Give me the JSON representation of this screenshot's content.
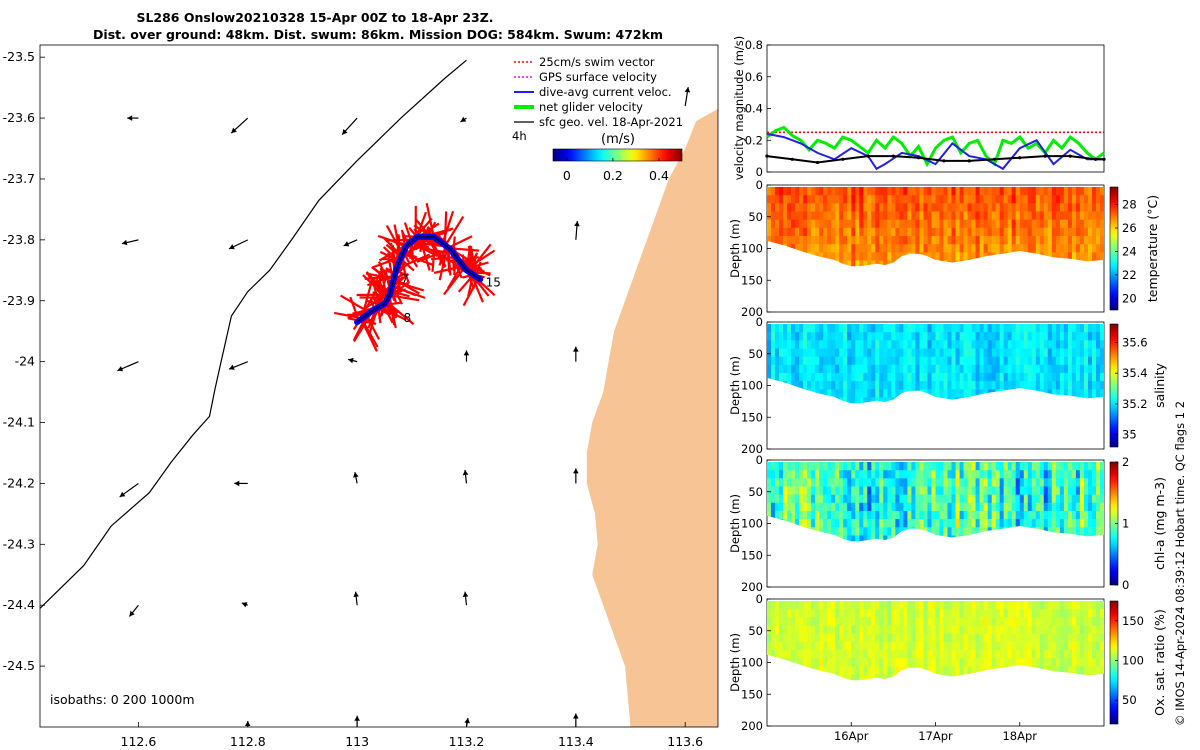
{
  "header": {
    "title_line1": "SL286 Onslow20210328 15-Apr 00Z to 18-Apr 23Z.",
    "title_line2": "Dist. over ground: 48km. Dist. swum: 86km. Mission DOG: 584km. Swum: 472km"
  },
  "map": {
    "xlim": [
      112.42,
      113.66
    ],
    "ylim": [
      -24.6,
      -23.48
    ],
    "xticks": [
      "112.6",
      "112.8",
      "113",
      "113.2",
      "113.4",
      "113.6"
    ],
    "xtick_values": [
      112.6,
      112.8,
      113.0,
      113.2,
      113.4,
      113.6
    ],
    "yticks": [
      "-23.5",
      "-23.6",
      "-23.7",
      "-23.8",
      "-23.9",
      "-24",
      "-24.1",
      "-24.2",
      "-24.3",
      "-24.4",
      "-24.5"
    ],
    "ytick_values": [
      -23.5,
      -23.6,
      -23.7,
      -23.8,
      -23.9,
      -24.0,
      -24.1,
      -24.2,
      -24.3,
      -24.4,
      -24.5
    ],
    "legend": [
      {
        "label": "25cm/s swim vector",
        "color": "#ff0000"
      },
      {
        "label": "GPS surface velocity",
        "color": "#ff00ff"
      },
      {
        "label": "dive-avg current veloc.",
        "color": "#0000ff"
      },
      {
        "label": "net glider velocity",
        "color": "#00ee00"
      },
      {
        "label": "sfc geo. vel. 18-Apr-2021",
        "color": "#000000"
      }
    ],
    "legend_extra": "4h",
    "colorbar_title": "(m/s)",
    "colorbar_ticks": [
      "0",
      "0.2",
      "0.4"
    ],
    "colorbar_tick_values": [
      0,
      0.2,
      0.4
    ],
    "colorbar_range": [
      -0.06,
      0.5
    ],
    "track_labels": [
      {
        "text": "7",
        "lon": 113.08,
        "lat": -23.865
      },
      {
        "text": "8",
        "lon": 113.085,
        "lat": -23.928
      },
      {
        "text": "15",
        "lon": 113.235,
        "lat": -23.87
      }
    ],
    "isobaths_label": "isobaths: 0   200  1000m",
    "land_color": "#f7c595",
    "track_color": "#0000ee",
    "swim_color": "#ff0000",
    "glider_track": [
      [
        113.0,
        -23.935
      ],
      [
        113.03,
        -23.915
      ],
      [
        113.05,
        -23.905
      ],
      [
        113.06,
        -23.89
      ],
      [
        113.065,
        -23.87
      ],
      [
        113.075,
        -23.84
      ],
      [
        113.09,
        -23.81
      ],
      [
        113.11,
        -23.795
      ],
      [
        113.14,
        -23.795
      ],
      [
        113.17,
        -23.815
      ],
      [
        113.2,
        -23.85
      ],
      [
        113.225,
        -23.865
      ]
    ],
    "isobath_1000m": [
      [
        112.42,
        -24.405
      ],
      [
        112.5,
        -24.335
      ],
      [
        112.55,
        -24.27
      ],
      [
        112.62,
        -24.215
      ],
      [
        112.66,
        -24.165
      ],
      [
        112.7,
        -24.12
      ],
      [
        112.73,
        -24.09
      ],
      [
        112.74,
        -24.045
      ],
      [
        112.75,
        -24.005
      ],
      [
        112.77,
        -23.925
      ],
      [
        112.8,
        -23.885
      ],
      [
        112.84,
        -23.85
      ],
      [
        112.88,
        -23.8
      ],
      [
        112.93,
        -23.735
      ],
      [
        113.0,
        -23.67
      ],
      [
        113.08,
        -23.6
      ],
      [
        113.16,
        -23.535
      ],
      [
        113.2,
        -23.505
      ]
    ],
    "coastline": [
      [
        113.66,
        -23.585
      ],
      [
        113.62,
        -23.605
      ],
      [
        113.6,
        -23.65
      ],
      [
        113.57,
        -23.7
      ],
      [
        113.55,
        -23.75
      ],
      [
        113.53,
        -23.8
      ],
      [
        113.51,
        -23.85
      ],
      [
        113.49,
        -23.9
      ],
      [
        113.47,
        -23.95
      ],
      [
        113.46,
        -24.0
      ],
      [
        113.45,
        -24.05
      ],
      [
        113.43,
        -24.1
      ],
      [
        113.42,
        -24.15
      ],
      [
        113.42,
        -24.2
      ],
      [
        113.435,
        -24.25
      ],
      [
        113.44,
        -24.3
      ],
      [
        113.43,
        -24.35
      ],
      [
        113.45,
        -24.4
      ],
      [
        113.47,
        -24.45
      ],
      [
        113.49,
        -24.5
      ],
      [
        113.5,
        -24.6
      ]
    ],
    "geo_vectors": [
      [
        112.6,
        -23.6,
        -0.15,
        0
      ],
      [
        112.8,
        -23.6,
        -0.22,
        -0.2
      ],
      [
        113.0,
        -23.6,
        -0.2,
        -0.22
      ],
      [
        113.2,
        -23.6,
        -0.08,
        -0.05
      ],
      [
        112.6,
        -23.8,
        -0.22,
        -0.05
      ],
      [
        112.8,
        -23.8,
        -0.25,
        -0.12
      ],
      [
        113.0,
        -23.8,
        -0.18,
        -0.08
      ],
      [
        113.4,
        -23.8,
        0.02,
        0.25
      ],
      [
        112.6,
        -24.0,
        -0.28,
        -0.12
      ],
      [
        112.8,
        -24.0,
        -0.25,
        -0.1
      ],
      [
        113.0,
        -24.0,
        -0.12,
        0.03
      ],
      [
        113.2,
        -24.0,
        0.0,
        0.15
      ],
      [
        113.4,
        -24.0,
        0.0,
        0.2
      ],
      [
        112.6,
        -24.2,
        -0.25,
        -0.18
      ],
      [
        112.8,
        -24.2,
        -0.18,
        0
      ],
      [
        113.0,
        -24.2,
        -0.03,
        0.15
      ],
      [
        113.2,
        -24.2,
        -0.02,
        0.18
      ],
      [
        113.4,
        -24.2,
        0.0,
        0.2
      ],
      [
        112.6,
        -24.4,
        -0.12,
        -0.15
      ],
      [
        112.8,
        -24.4,
        -0.08,
        0.03
      ],
      [
        113.0,
        -24.4,
        -0.02,
        0.18
      ],
      [
        113.2,
        -24.4,
        -0.02,
        0.18
      ],
      [
        112.8,
        -24.6,
        0,
        0.08
      ],
      [
        113.0,
        -24.6,
        0,
        0.15
      ],
      [
        113.2,
        -24.6,
        0.02,
        0.12
      ],
      [
        113.4,
        -24.6,
        0,
        0.18
      ],
      [
        113.6,
        -23.58,
        0.04,
        0.25
      ]
    ]
  },
  "chart_data": [
    {
      "type": "line",
      "title": "",
      "ylabel": "velocity magnitude (m/s)",
      "ylim": [
        0,
        0.8
      ],
      "yticks": [
        "0",
        "0.2",
        "0.4",
        "0.6",
        "0.8"
      ],
      "ytick_values": [
        0,
        0.2,
        0.4,
        0.6,
        0.8
      ],
      "xlim": [
        0,
        4
      ],
      "series": [
        {
          "name": "25cm/s swim vector",
          "color": "#ff0000",
          "style": "dotted",
          "x": [
            0,
            4
          ],
          "values": [
            0.25,
            0.25
          ]
        },
        {
          "name": "net glider velocity",
          "color": "#00ee00",
          "x": [
            0,
            0.1,
            0.2,
            0.3,
            0.4,
            0.5,
            0.6,
            0.7,
            0.8,
            0.9,
            1.0,
            1.1,
            1.2,
            1.3,
            1.4,
            1.5,
            1.6,
            1.7,
            1.8,
            1.9,
            2.0,
            2.1,
            2.2,
            2.3,
            2.4,
            2.5,
            2.6,
            2.7,
            2.8,
            2.9,
            3.0,
            3.1,
            3.2,
            3.3,
            3.4,
            3.5,
            3.6,
            3.7,
            3.8,
            3.9,
            4.0
          ],
          "values": [
            0.22,
            0.26,
            0.28,
            0.23,
            0.2,
            0.14,
            0.2,
            0.18,
            0.15,
            0.22,
            0.2,
            0.16,
            0.12,
            0.2,
            0.15,
            0.22,
            0.18,
            0.1,
            0.16,
            0.05,
            0.15,
            0.2,
            0.22,
            0.12,
            0.18,
            0.2,
            0.1,
            0.05,
            0.2,
            0.18,
            0.22,
            0.15,
            0.18,
            0.12,
            0.2,
            0.15,
            0.22,
            0.18,
            0.12,
            0.08,
            0.12
          ]
        },
        {
          "name": "dive-avg current veloc.",
          "color": "#2222dd",
          "x": [
            0,
            0.2,
            0.4,
            0.6,
            0.8,
            1.0,
            1.2,
            1.3,
            1.4,
            1.6,
            1.8,
            2.0,
            2.2,
            2.4,
            2.6,
            2.8,
            3.0,
            3.2,
            3.4,
            3.6,
            3.8,
            4.0
          ],
          "values": [
            0.24,
            0.22,
            0.18,
            0.12,
            0.08,
            0.15,
            0.1,
            0.02,
            0.05,
            0.12,
            0.1,
            0.05,
            0.18,
            0.1,
            0.08,
            0.02,
            0.15,
            0.2,
            0.05,
            0.14,
            0.08,
            0.08
          ]
        },
        {
          "name": "sfc geo. vel.",
          "color": "#000000",
          "x": [
            0,
            0.3,
            0.6,
            0.9,
            1.2,
            1.5,
            1.8,
            2.1,
            2.4,
            2.7,
            3.0,
            3.3,
            3.6,
            3.9,
            4.0
          ],
          "values": [
            0.1,
            0.08,
            0.06,
            0.08,
            0.1,
            0.1,
            0.09,
            0.07,
            0.07,
            0.08,
            0.09,
            0.1,
            0.1,
            0.08,
            0.08
          ]
        }
      ]
    },
    {
      "type": "heatmap",
      "ylabel": "Depth (m)",
      "clabel": "temperature (°C)",
      "yticks": [
        "0",
        "50",
        "100",
        "150",
        "200"
      ],
      "ytick_values": [
        0,
        50,
        100,
        150,
        200
      ],
      "ylim": [
        0,
        200
      ],
      "cticks": [
        "20",
        "22",
        "24",
        "26",
        "28"
      ],
      "ctick_values": [
        20,
        22,
        24,
        26,
        28
      ],
      "crange": [
        19,
        29.5
      ],
      "values_range": [
        24,
        29
      ]
    },
    {
      "type": "heatmap",
      "ylabel": "Depth (m)",
      "clabel": "salinity",
      "yticks": [
        "0",
        "50",
        "100",
        "150",
        "200"
      ],
      "ytick_values": [
        0,
        50,
        100,
        150,
        200
      ],
      "ylim": [
        0,
        200
      ],
      "cticks": [
        "35",
        "35.2",
        "35.4",
        "35.6"
      ],
      "ctick_values": [
        35.0,
        35.2,
        35.4,
        35.6
      ],
      "crange": [
        34.92,
        35.72
      ],
      "values_range": [
        35.1,
        35.3
      ]
    },
    {
      "type": "heatmap",
      "ylabel": "Depth (m)",
      "clabel": "chl-a (mg m-3)",
      "yticks": [
        "0",
        "50",
        "100",
        "150",
        "200"
      ],
      "ytick_values": [
        0,
        50,
        100,
        150,
        200
      ],
      "ylim": [
        0,
        200
      ],
      "cticks": [
        "0",
        "1",
        "2"
      ],
      "ctick_values": [
        0,
        1,
        2
      ],
      "crange": [
        0,
        2
      ],
      "values_range": [
        0.3,
        1.2
      ]
    },
    {
      "type": "heatmap",
      "ylabel": "Depth (m)",
      "clabel": "Ox. sat. ratio (%)",
      "yticks": [
        "0",
        "50",
        "100",
        "150",
        "200"
      ],
      "ytick_values": [
        0,
        50,
        100,
        150,
        200
      ],
      "ylim": [
        0,
        200
      ],
      "cticks": [
        "50",
        "100",
        "150"
      ],
      "ctick_values": [
        50,
        100,
        150
      ],
      "crange": [
        20,
        175
      ],
      "values_range": [
        95,
        115
      ],
      "xticks": [
        "16Apr",
        "17Apr",
        "18Apr"
      ],
      "xtick_values": [
        1,
        2,
        3
      ],
      "xlim": [
        0,
        4
      ]
    }
  ],
  "seafloor_depth": {
    "x": [
      0,
      0.2,
      0.4,
      0.6,
      0.8,
      0.9,
      1.0,
      1.1,
      1.2,
      1.3,
      1.4,
      1.5,
      1.6,
      1.7,
      1.8,
      1.9,
      2.0,
      2.2,
      2.4,
      2.6,
      2.8,
      3.0,
      3.2,
      3.4,
      3.6,
      3.8,
      4.0
    ],
    "values": [
      88,
      95,
      104,
      112,
      118,
      124,
      128,
      128,
      126,
      124,
      126,
      122,
      112,
      108,
      108,
      112,
      118,
      122,
      118,
      112,
      108,
      104,
      108,
      114,
      116,
      120,
      118
    ]
  },
  "side_note": "© IMOS 14-Apr-2024 08:39:12 Hobart time. QC flags 1  2"
}
